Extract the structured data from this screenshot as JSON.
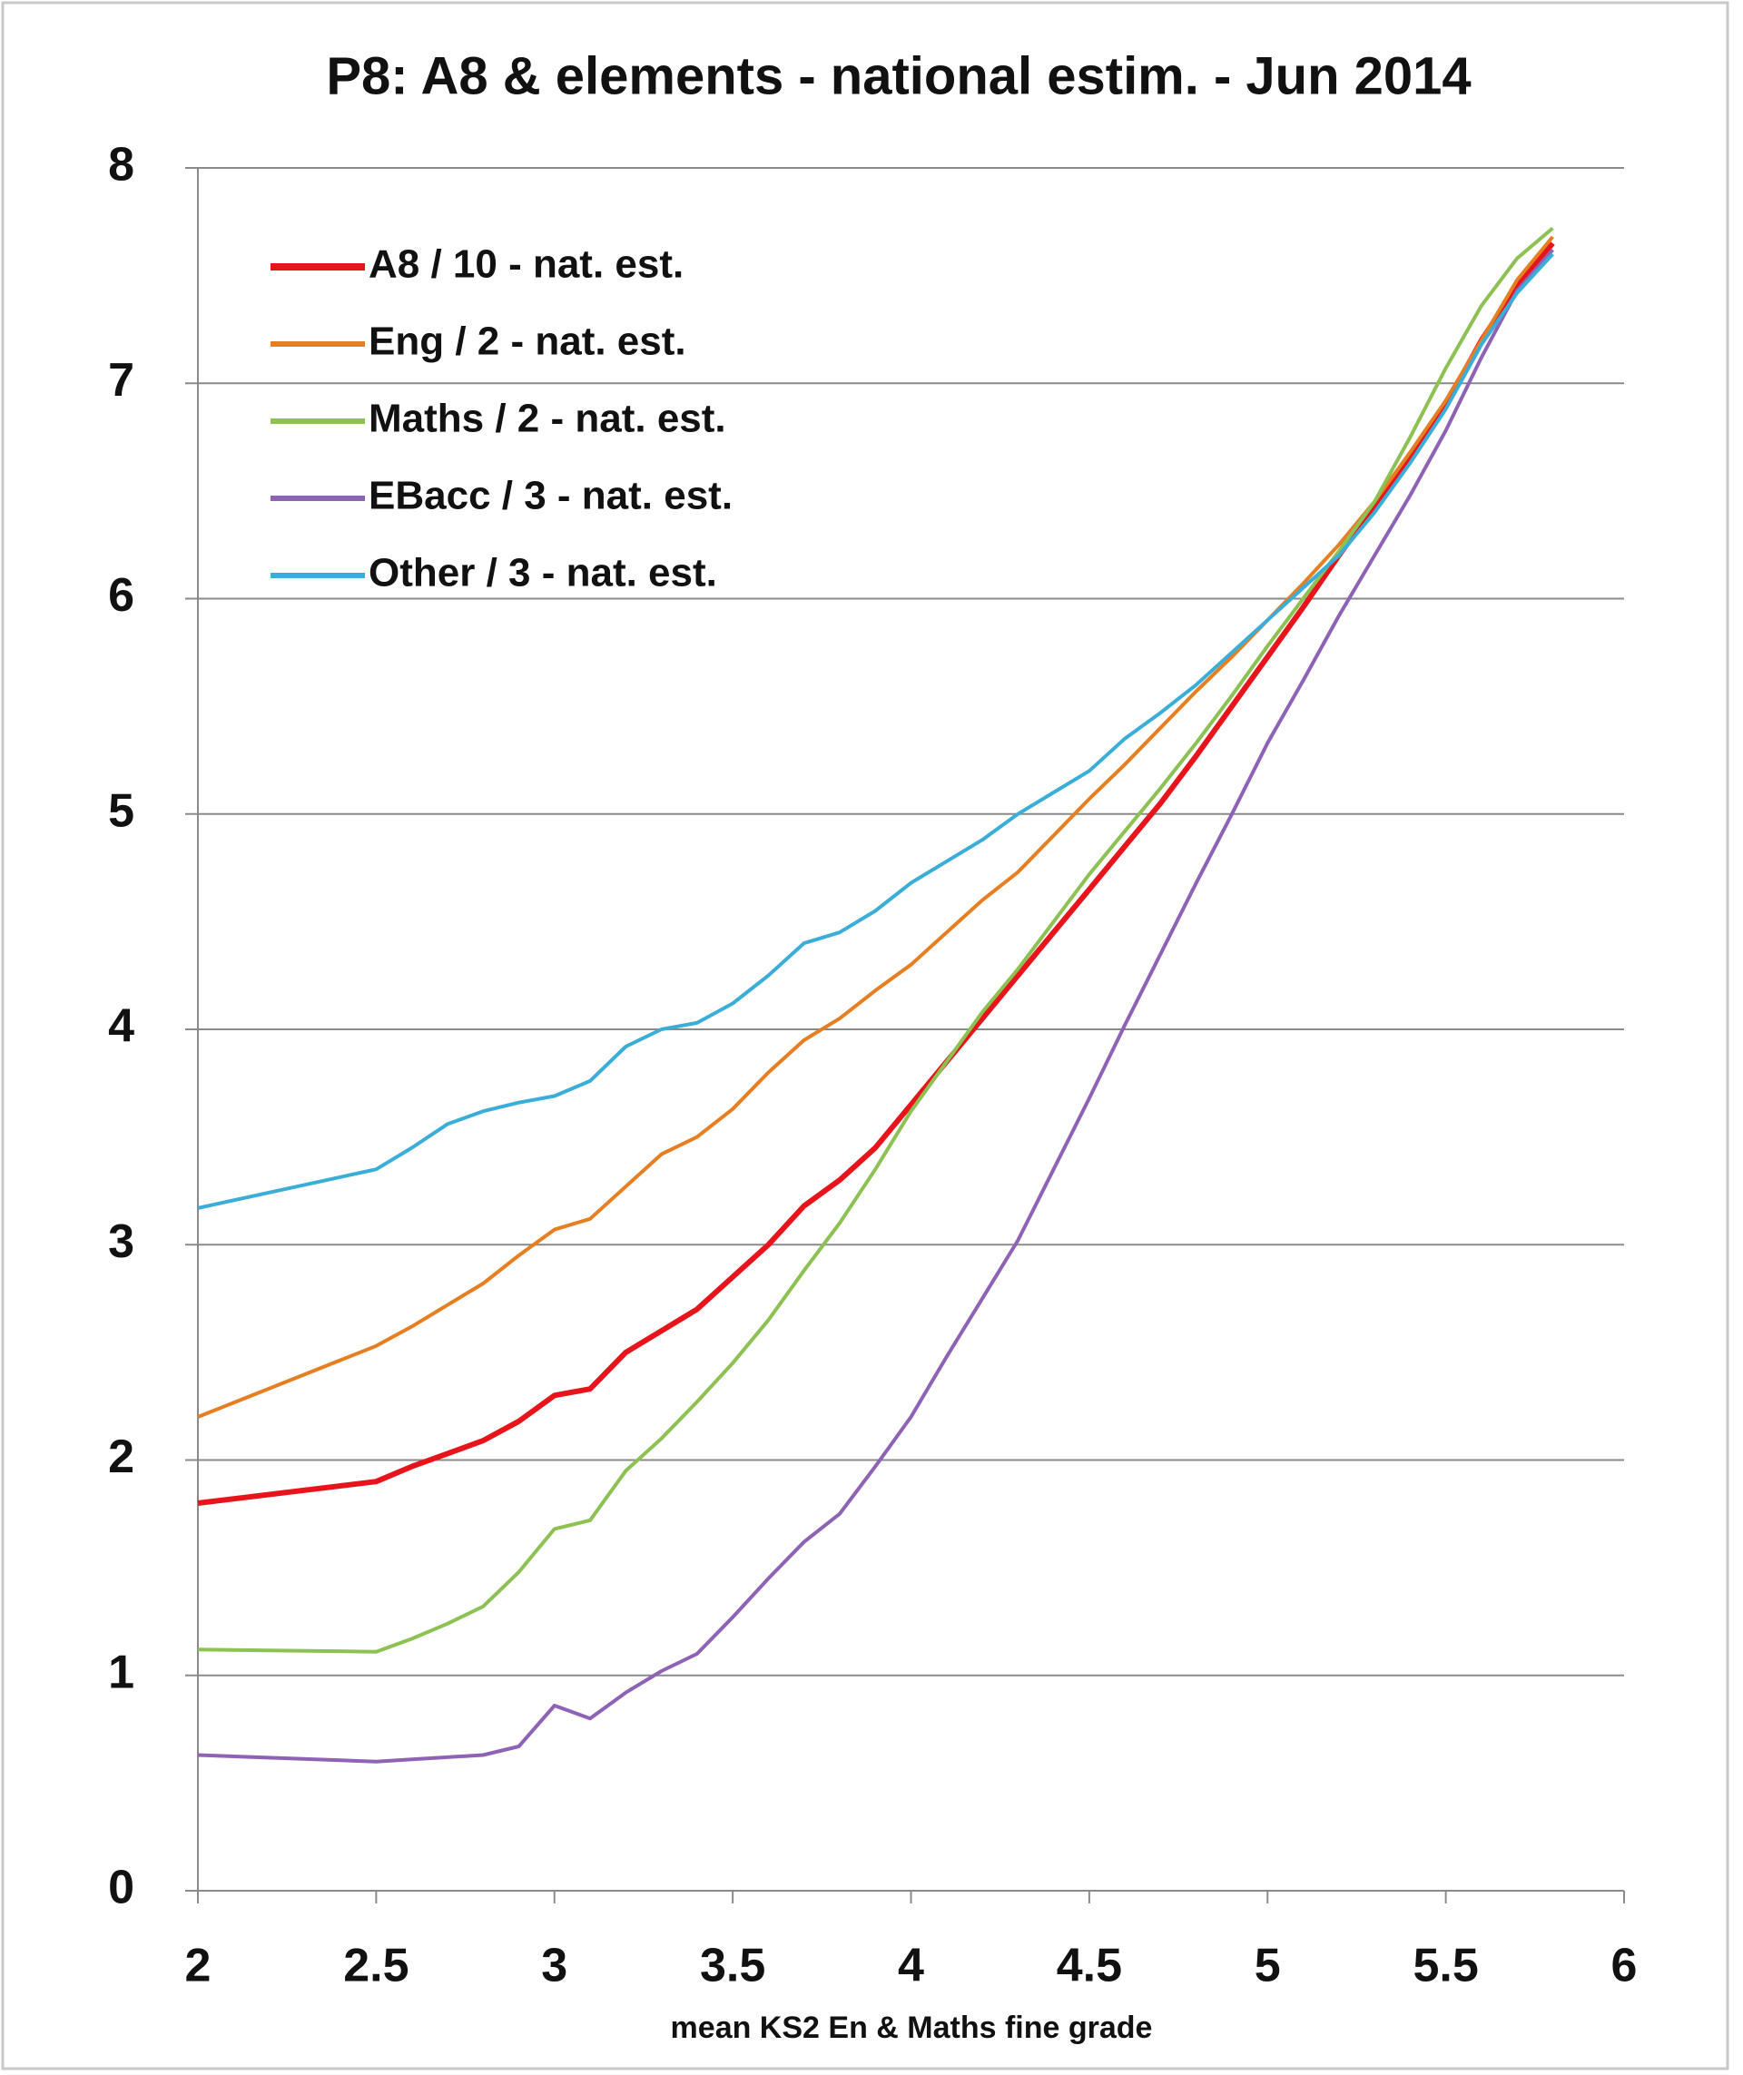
{
  "chart_data": {
    "type": "line",
    "title": "P8: A8 & elements - national  estim. - Jun 2014",
    "x_label": "mean KS2 En & Maths fine grade",
    "x": [
      2,
      2.5,
      2.6,
      2.7,
      2.8,
      2.9,
      3,
      3.1,
      3.2,
      3.3,
      3.4,
      3.5,
      3.6,
      3.7,
      3.8,
      3.9,
      4,
      4.1,
      4.2,
      4.3,
      4.4,
      4.5,
      4.6,
      4.7,
      4.8,
      4.9,
      5,
      5.1,
      5.2,
      5.3,
      5.4,
      5.5,
      5.6,
      5.7,
      5.8
    ],
    "series": [
      {
        "name": "A8 / 10 - nat. est.",
        "color": "#e8141b",
        "width": 6,
        "values": [
          1.8,
          1.9,
          1.97,
          2.03,
          2.09,
          2.18,
          2.3,
          2.33,
          2.5,
          2.6,
          2.7,
          2.85,
          3.0,
          3.18,
          3.3,
          3.45,
          3.65,
          3.85,
          4.05,
          4.25,
          4.45,
          4.65,
          4.85,
          5.05,
          5.27,
          5.5,
          5.73,
          5.96,
          6.2,
          6.43,
          6.66,
          6.9,
          7.2,
          7.45,
          7.65
        ]
      },
      {
        "name": "Eng / 2 - nat. est.",
        "color": "#e67e22",
        "width": 4,
        "values": [
          2.2,
          2.53,
          2.62,
          2.72,
          2.82,
          2.95,
          3.07,
          3.12,
          3.27,
          3.42,
          3.5,
          3.63,
          3.8,
          3.95,
          4.05,
          4.18,
          4.3,
          4.45,
          4.6,
          4.73,
          4.9,
          5.07,
          5.23,
          5.4,
          5.57,
          5.73,
          5.9,
          6.07,
          6.25,
          6.45,
          6.68,
          6.92,
          7.2,
          7.48,
          7.68
        ]
      },
      {
        "name": "Maths / 2 - nat. est.",
        "color": "#8dc153",
        "width": 4,
        "values": [
          1.12,
          1.11,
          1.17,
          1.24,
          1.32,
          1.48,
          1.68,
          1.72,
          1.95,
          2.1,
          2.27,
          2.45,
          2.65,
          2.88,
          3.1,
          3.35,
          3.62,
          3.85,
          4.08,
          4.28,
          4.5,
          4.72,
          4.92,
          5.12,
          5.33,
          5.55,
          5.78,
          6.0,
          6.22,
          6.45,
          6.75,
          7.07,
          7.36,
          7.58,
          7.72
        ]
      },
      {
        "name": "EBacc / 3 - nat. est.",
        "color": "#8e62b4",
        "width": 4,
        "values": [
          0.63,
          0.6,
          0.61,
          0.62,
          0.63,
          0.67,
          0.86,
          0.8,
          0.92,
          1.02,
          1.1,
          1.27,
          1.45,
          1.62,
          1.75,
          1.97,
          2.2,
          2.48,
          2.75,
          3.02,
          3.35,
          3.68,
          4.02,
          4.35,
          4.68,
          5.0,
          5.33,
          5.62,
          5.92,
          6.2,
          6.48,
          6.78,
          7.12,
          7.43,
          7.62
        ]
      },
      {
        "name": "Other / 3 - nat. est.",
        "color": "#3aaed8",
        "width": 4,
        "values": [
          3.17,
          3.35,
          3.45,
          3.56,
          3.62,
          3.66,
          3.69,
          3.76,
          3.92,
          4.0,
          4.03,
          4.12,
          4.25,
          4.4,
          4.45,
          4.55,
          4.68,
          4.78,
          4.88,
          5.0,
          5.1,
          5.2,
          5.35,
          5.47,
          5.6,
          5.75,
          5.9,
          6.05,
          6.2,
          6.4,
          6.63,
          6.88,
          7.18,
          7.42,
          7.6
        ]
      }
    ],
    "xlim": [
      2,
      6
    ],
    "xticks": [
      2,
      2.5,
      3,
      3.5,
      4,
      4.5,
      5,
      5.5,
      6
    ],
    "ylim": [
      0,
      8
    ],
    "yticks": [
      0,
      1,
      2,
      3,
      4,
      5,
      6,
      7,
      8
    ],
    "grid": true,
    "legend": "upper left"
  }
}
